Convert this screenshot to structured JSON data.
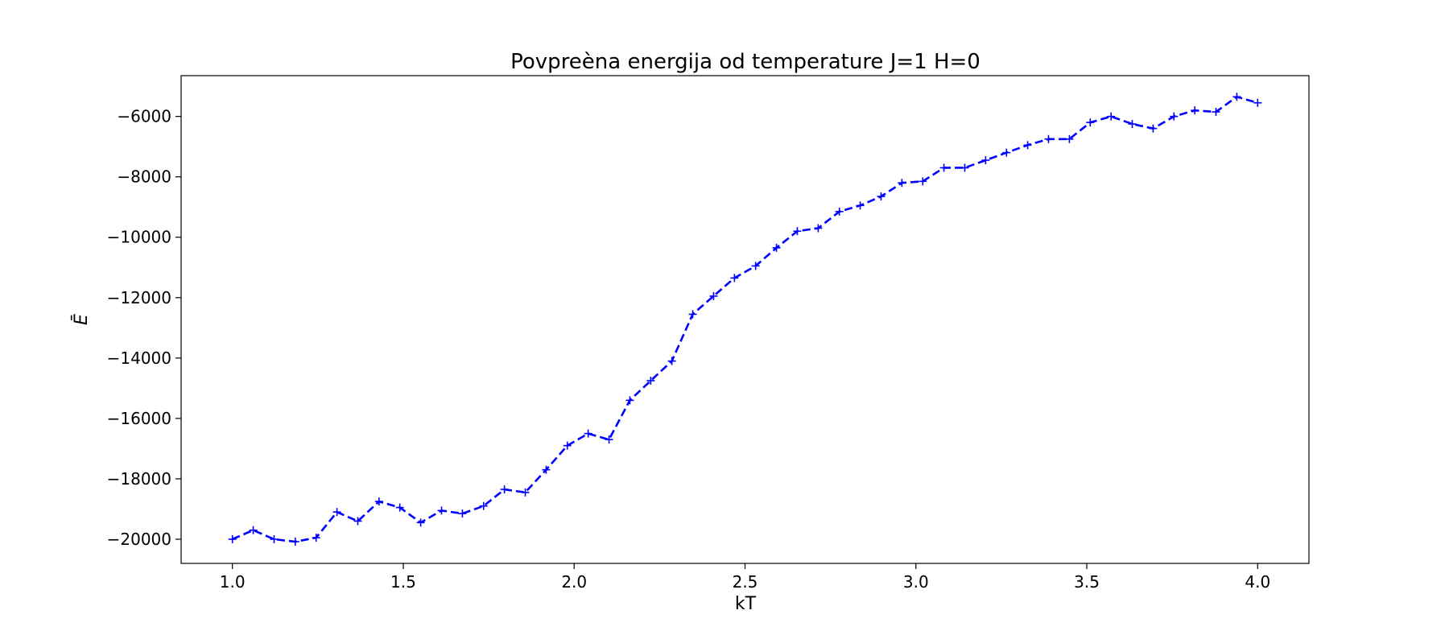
{
  "chart_data": {
    "type": "line",
    "title": "Povpreèna energija od temperature J=1 H=0",
    "xlabel": "kT",
    "ylabel": "Ē",
    "xlim": [
      0.85,
      4.15
    ],
    "ylim": [
      -20800,
      -4650
    ],
    "xticks": [
      1.0,
      1.5,
      2.0,
      2.5,
      3.0,
      3.5,
      4.0
    ],
    "xtick_labels": [
      "1.0",
      "1.5",
      "2.0",
      "2.5",
      "3.0",
      "3.5",
      "4.0"
    ],
    "yticks": [
      -20000,
      -18000,
      -16000,
      -14000,
      -12000,
      -10000,
      -8000,
      -6000
    ],
    "ytick_labels": [
      "−20000",
      "−18000",
      "−16000",
      "−14000",
      "−12000",
      "−10000",
      "−8000",
      "−6000"
    ],
    "grid": false,
    "series": [
      {
        "color": "#0000ff",
        "line_style": "dashed",
        "marker": "plus",
        "x": [
          1.0,
          1.061,
          1.122,
          1.184,
          1.245,
          1.306,
          1.367,
          1.429,
          1.49,
          1.551,
          1.612,
          1.673,
          1.735,
          1.796,
          1.857,
          1.918,
          1.98,
          2.041,
          2.102,
          2.163,
          2.224,
          2.286,
          2.347,
          2.408,
          2.469,
          2.531,
          2.592,
          2.653,
          2.714,
          2.776,
          2.837,
          2.898,
          2.959,
          3.02,
          3.082,
          3.143,
          3.204,
          3.265,
          3.327,
          3.388,
          3.449,
          3.51,
          3.571,
          3.633,
          3.694,
          3.755,
          3.816,
          3.878,
          3.939,
          4.0
        ],
        "y": [
          -20000,
          -19700,
          -20000,
          -20080,
          -19950,
          -19100,
          -19400,
          -18750,
          -18950,
          -19450,
          -19050,
          -19150,
          -18900,
          -18350,
          -18450,
          -17700,
          -16900,
          -16500,
          -16700,
          -15400,
          -14750,
          -14100,
          -12550,
          -11950,
          -11350,
          -10950,
          -10350,
          -9800,
          -9700,
          -9150,
          -8950,
          -8650,
          -8200,
          -8150,
          -7700,
          -7700,
          -7450,
          -7200,
          -6950,
          -6750,
          -6750,
          -6200,
          -6000,
          -6250,
          -6400,
          -6000,
          -5800,
          -5850,
          -5350,
          -5550
        ]
      }
    ]
  }
}
